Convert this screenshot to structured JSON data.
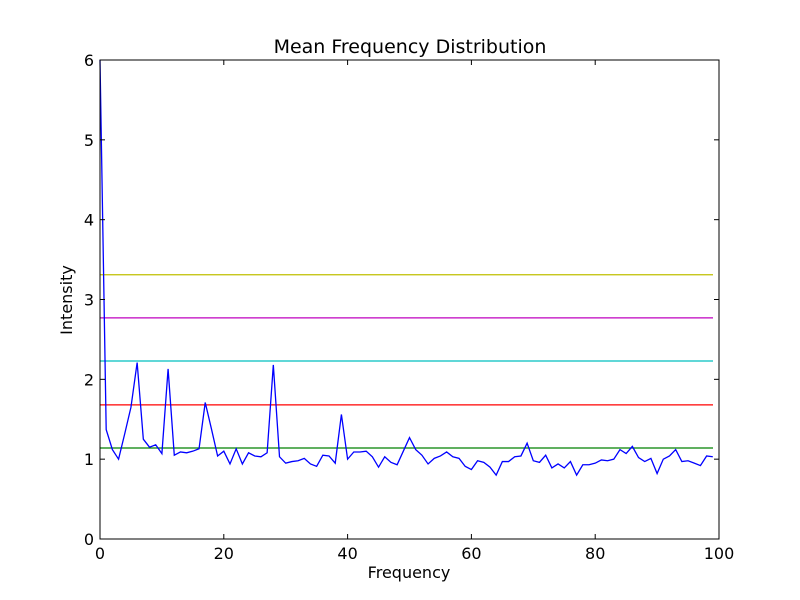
{
  "chart_data": {
    "type": "line",
    "title": "Mean Frequency Distribution",
    "xlabel": "Frequency",
    "ylabel": "Intensity",
    "xlim": [
      0,
      100
    ],
    "ylim": [
      0,
      6
    ],
    "xticks": [
      "0",
      "20",
      "40",
      "60",
      "80",
      "100"
    ],
    "yticks": [
      "0",
      "1",
      "2",
      "3",
      "4",
      "5",
      "6"
    ],
    "grid": false,
    "legend": "none",
    "series": [
      {
        "color": "#0000ff",
        "x": [
          0,
          1,
          2,
          3,
          4,
          5,
          6,
          7,
          8,
          9,
          10,
          11,
          12,
          13,
          14,
          15,
          16,
          17,
          18,
          19,
          20,
          21,
          22,
          23,
          24,
          25,
          26,
          27,
          28,
          29,
          30,
          31,
          32,
          33,
          34,
          35,
          36,
          37,
          38,
          39,
          40,
          41,
          42,
          43,
          44,
          45,
          46,
          47,
          48,
          49,
          50,
          51,
          52,
          53,
          54,
          55,
          56,
          57,
          58,
          59,
          60,
          61,
          62,
          63,
          64,
          65,
          66,
          67,
          68,
          69,
          70,
          71,
          72,
          73,
          74,
          75,
          76,
          77,
          78,
          79,
          80,
          81,
          82,
          83,
          84,
          85,
          86,
          87,
          88,
          89,
          90,
          91,
          92,
          93,
          94,
          95,
          96,
          97,
          98,
          99
        ],
        "y": [
          6.0,
          1.37,
          1.12,
          1.0,
          1.32,
          1.65,
          2.21,
          1.25,
          1.15,
          1.18,
          1.07,
          2.13,
          1.05,
          1.09,
          1.08,
          1.1,
          1.13,
          1.71,
          1.38,
          1.04,
          1.1,
          0.94,
          1.13,
          0.94,
          1.08,
          1.04,
          1.03,
          1.08,
          2.18,
          1.03,
          0.95,
          0.97,
          0.98,
          1.01,
          0.94,
          0.91,
          1.05,
          1.04,
          0.95,
          1.56,
          1.0,
          1.09,
          1.09,
          1.1,
          1.03,
          0.9,
          1.03,
          0.96,
          0.93,
          1.1,
          1.27,
          1.12,
          1.05,
          0.94,
          1.01,
          1.04,
          1.09,
          1.03,
          1.01,
          0.91,
          0.87,
          0.98,
          0.96,
          0.9,
          0.8,
          0.97,
          0.97,
          1.03,
          1.04,
          1.2,
          0.98,
          0.96,
          1.05,
          0.89,
          0.94,
          0.89,
          0.97,
          0.8,
          0.93,
          0.93,
          0.95,
          0.99,
          0.98,
          1.0,
          1.12,
          1.07,
          1.16,
          1.02,
          0.97,
          1.01,
          0.82,
          1.0,
          1.04,
          1.12,
          0.97,
          0.98,
          0.95,
          0.92,
          1.04,
          1.03
        ]
      }
    ],
    "hlines": [
      {
        "y": 3.31,
        "color": "#bfbf00"
      },
      {
        "y": 2.77,
        "color": "#bf00bf"
      },
      {
        "y": 2.23,
        "color": "#00bfbf"
      },
      {
        "y": 1.68,
        "color": "#ff0000"
      },
      {
        "y": 1.14,
        "color": "#008000"
      }
    ]
  }
}
